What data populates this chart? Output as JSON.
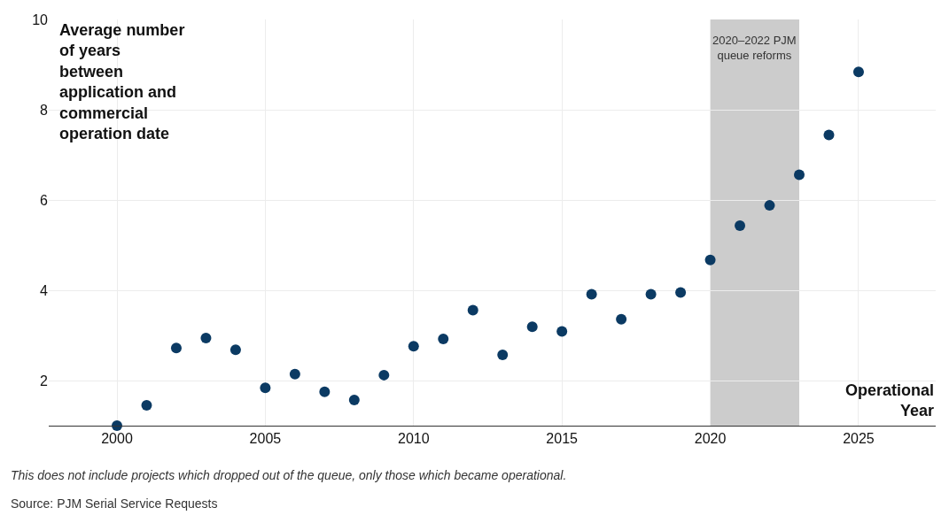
{
  "chart_data": {
    "type": "scatter",
    "xlabel": "Operational Year",
    "ylabel": "Average number of years between application and commercial operation date",
    "x": [
      2000,
      2001,
      2002,
      2003,
      2004,
      2005,
      2006,
      2007,
      2008,
      2009,
      2010,
      2011,
      2012,
      2013,
      2014,
      2015,
      2016,
      2017,
      2018,
      2019,
      2020,
      2021,
      2022,
      2023,
      2024,
      2025
    ],
    "series": [
      {
        "color": "#0b3a63",
        "values": [
          1.0,
          1.45,
          2.72,
          2.94,
          2.68,
          1.84,
          2.14,
          1.75,
          1.57,
          2.12,
          2.76,
          2.92,
          3.56,
          2.57,
          3.19,
          3.09,
          3.91,
          3.36,
          3.91,
          3.95,
          4.67,
          5.43,
          5.88,
          6.56,
          7.44,
          8.84
        ]
      }
    ],
    "xlim": [
      1997.7,
      2027.6
    ],
    "xticks": [
      2000,
      2005,
      2010,
      2015,
      2020,
      2025
    ],
    "ylim": [
      1,
      10
    ],
    "yticks": [
      2,
      4,
      6,
      8,
      10
    ],
    "grid": true,
    "marker": "circle",
    "bands": [
      {
        "axis": "x",
        "from": 2020,
        "to": 2023,
        "label": "2020–2022 PJM queue reforms",
        "color": "#cccccc"
      }
    ],
    "annotations": [
      "This does not include projects which dropped out of the queue, only those which became operational.",
      "Source: PJM Serial Service Requests"
    ]
  }
}
